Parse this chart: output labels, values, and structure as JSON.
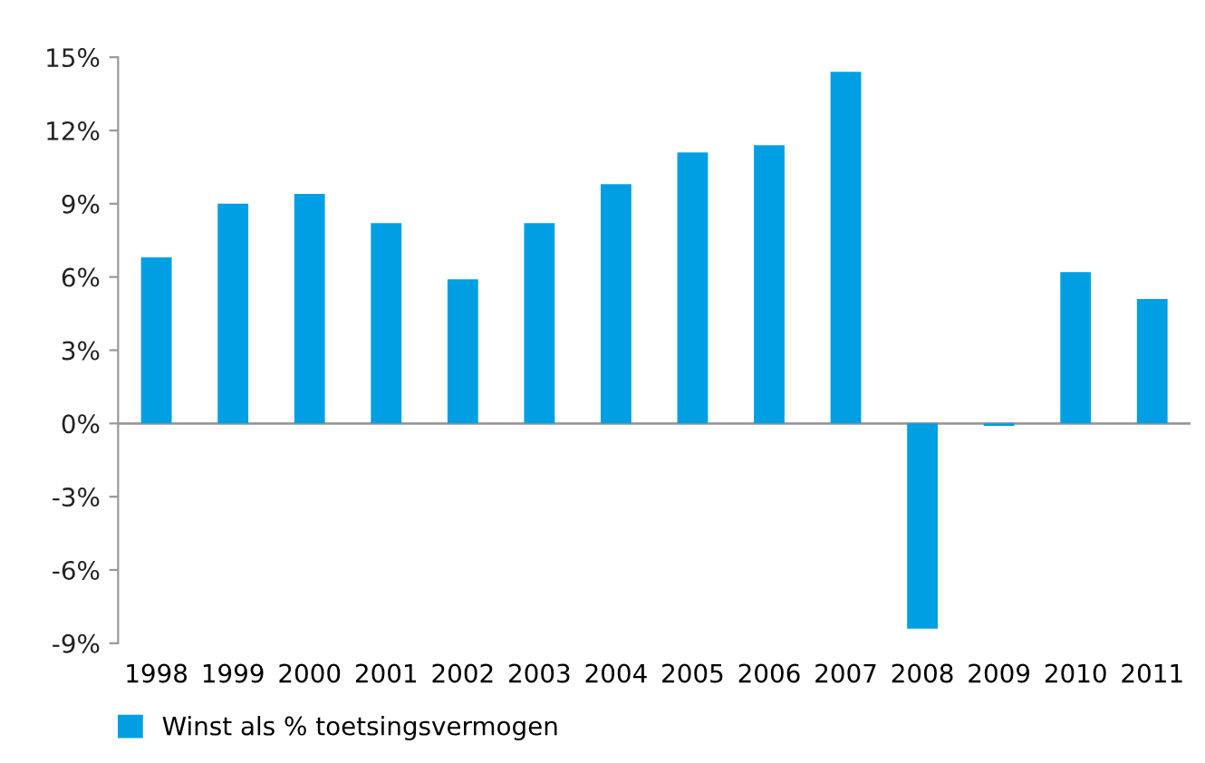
{
  "chart_data": {
    "type": "bar",
    "categories": [
      "1998",
      "1999",
      "2000",
      "2001",
      "2002",
      "2003",
      "2004",
      "2005",
      "2006",
      "2007",
      "2008",
      "2009",
      "2010",
      "2011"
    ],
    "series": [
      {
        "name": "Winst als % toetsingsvermogen",
        "color": "#009fe3",
        "values": [
          6.8,
          9.0,
          9.4,
          8.2,
          5.9,
          8.2,
          9.8,
          11.1,
          11.4,
          14.4,
          -8.4,
          -0.1,
          6.2,
          5.1
        ]
      }
    ],
    "ylim": [
      -9,
      15
    ],
    "yticks": [
      {
        "value": -9,
        "label": "-9%"
      },
      {
        "value": -6,
        "label": "-6%"
      },
      {
        "value": -3,
        "label": "-3%"
      },
      {
        "value": 0,
        "label": "0%"
      },
      {
        "value": 3,
        "label": "3%"
      },
      {
        "value": 6,
        "label": "6%"
      },
      {
        "value": 9,
        "label": "9%"
      },
      {
        "value": 12,
        "label": "12%"
      },
      {
        "value": 15,
        "label": "15%"
      }
    ],
    "ref_lines": [
      {
        "axis": "y",
        "value": 0,
        "color": "#999999",
        "line_style": "solid"
      }
    ],
    "grid": false,
    "legend": "bottom left"
  }
}
